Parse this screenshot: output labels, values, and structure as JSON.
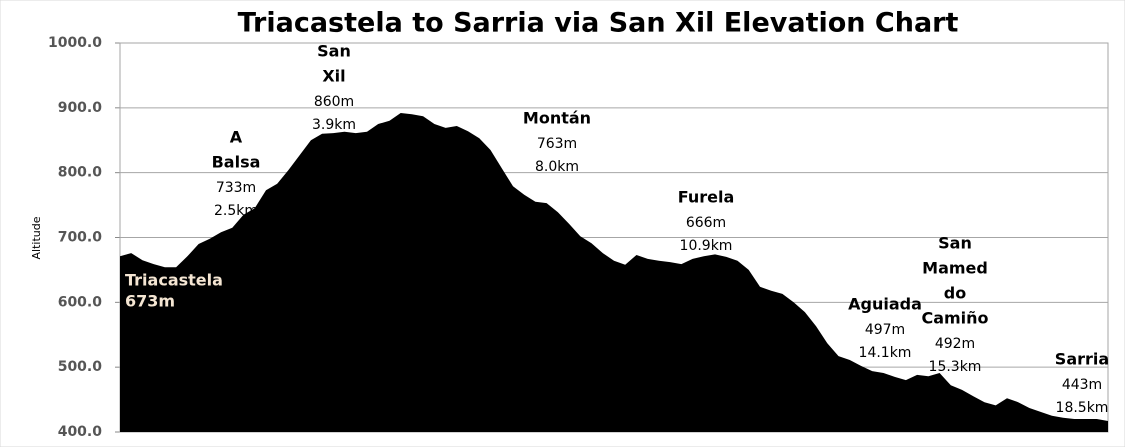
{
  "chart_data": {
    "type": "area",
    "title": "Triacastela to Sarria via San Xil Elevation Chart",
    "y_label": "Altitude",
    "color": "#000000",
    "grid": true,
    "ylim": [
      400,
      1000
    ],
    "yticks": [
      {
        "value": 400,
        "label": "400.0"
      },
      {
        "value": 500,
        "label": "500.0"
      },
      {
        "value": 600,
        "label": "600.0"
      },
      {
        "value": 700,
        "label": "700.0"
      },
      {
        "value": 800,
        "label": "800.0"
      },
      {
        "value": 900,
        "label": "900.0"
      },
      {
        "value": 1000,
        "label": "1000.0"
      }
    ],
    "values": [
      671,
      676,
      665,
      659,
      654,
      654,
      671,
      690,
      698,
      708,
      715,
      735,
      745,
      773,
      783,
      804,
      827,
      850,
      860,
      861,
      863,
      861,
      863,
      875,
      880,
      892,
      890,
      887,
      875,
      869,
      872,
      864,
      853,
      835,
      807,
      779,
      766,
      755,
      753,
      739,
      721,
      702,
      691,
      676,
      664,
      658,
      673,
      667,
      664,
      662,
      659,
      667,
      671,
      674,
      670,
      664,
      650,
      624,
      618,
      613,
      600,
      585,
      563,
      537,
      517,
      511,
      502,
      494,
      491,
      485,
      480,
      488,
      486,
      491,
      472,
      465,
      455,
      446,
      441,
      452,
      446,
      437,
      431,
      425,
      422,
      420,
      420,
      420,
      417
    ],
    "annotations": [
      {
        "name": [
          "Triacastela"
        ],
        "elevation": "673m"
      },
      {
        "name": [
          "A",
          "Balsa"
        ],
        "elevation": "733m",
        "distance": "2.5km"
      },
      {
        "name": [
          "San",
          "Xil"
        ],
        "elevation": "860m",
        "distance": "3.9km"
      },
      {
        "name": [
          "Montán"
        ],
        "elevation": "763m",
        "distance": "8.0km"
      },
      {
        "name": [
          "Furela"
        ],
        "elevation": "666m",
        "distance": "10.9km"
      },
      {
        "name": [
          "Aguiada"
        ],
        "elevation": "497m",
        "distance": "14.1km"
      },
      {
        "name": [
          "San",
          "Mamed",
          "do",
          "Camiño"
        ],
        "elevation": "492m",
        "distance": "15.3km"
      },
      {
        "name": [
          "Sarria"
        ],
        "elevation": "443m",
        "distance": "18.5km"
      }
    ]
  }
}
